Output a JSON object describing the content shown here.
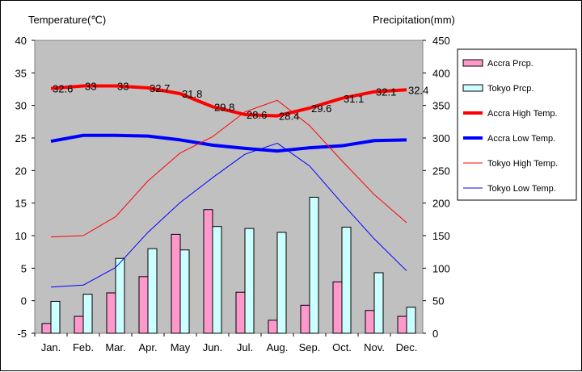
{
  "chart_data": {
    "type": "bar",
    "categories": [
      "Jan.",
      "Feb.",
      "Mar.",
      "Apr.",
      "May",
      "Jun.",
      "Jul.",
      "Aug.",
      "Sep.",
      "Oct.",
      "Nov.",
      "Dec."
    ],
    "ylabel": "Temperature(℃)",
    "y2label": "Precipitation(mm)",
    "ylim": [
      -5,
      40
    ],
    "y2lim": [
      0,
      450
    ],
    "yticks": [
      -5,
      0,
      5,
      10,
      15,
      20,
      25,
      30,
      35,
      40
    ],
    "y2ticks": [
      0,
      50,
      100,
      150,
      200,
      250,
      300,
      350,
      400,
      450
    ],
    "grid": false,
    "legend": "right",
    "bar_series": [
      {
        "name": "Accra Prcp.",
        "color": "#ff99cc",
        "values": [
          15,
          26,
          62,
          87,
          152,
          190,
          63,
          20,
          43,
          79,
          35,
          26
        ]
      },
      {
        "name": "Tokyo Prcp.",
        "color": "#ccffff",
        "values": [
          49,
          60,
          115,
          130,
          128,
          164,
          161,
          155,
          209,
          163,
          93,
          40
        ]
      }
    ],
    "line_series": [
      {
        "name": "Accra High Temp.",
        "color": "#ff0000",
        "width": 4,
        "values": [
          32.6,
          33,
          33,
          32.7,
          31.8,
          29.8,
          28.6,
          28.4,
          29.6,
          31.1,
          32.1,
          32.4
        ],
        "labels": [
          "32.6",
          "33",
          "33",
          "32.7",
          "31.8",
          "29.8",
          "28.6",
          "28.4",
          "29.6",
          "31.1",
          "32.1",
          "32.4"
        ]
      },
      {
        "name": "Accra Low Temp.",
        "color": "#0000ff",
        "width": 4,
        "values": [
          24.5,
          25.4,
          25.4,
          25.3,
          24.7,
          23.9,
          23.4,
          23.0,
          23.5,
          23.8,
          24.6,
          24.7
        ]
      },
      {
        "name": "Tokyo High Temp.",
        "color": "#ff0000",
        "width": 1,
        "values": [
          9.8,
          10.0,
          12.9,
          18.4,
          22.7,
          25.2,
          29.0,
          30.8,
          26.9,
          21.5,
          16.3,
          12.0
        ]
      },
      {
        "name": "Tokyo Low Temp.",
        "color": "#0000ff",
        "width": 1,
        "values": [
          2.1,
          2.4,
          5.1,
          10.5,
          15.1,
          18.9,
          22.5,
          24.2,
          20.7,
          15.0,
          9.5,
          4.6
        ]
      }
    ]
  }
}
